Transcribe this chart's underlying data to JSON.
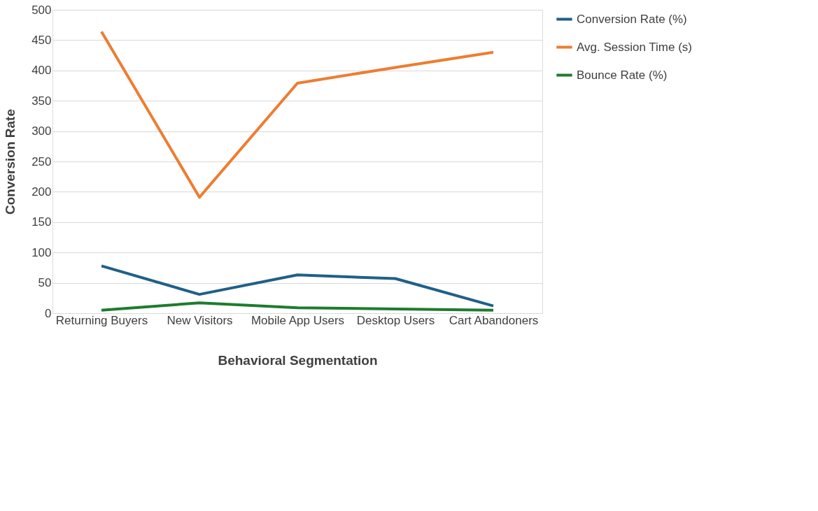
{
  "chart_data": {
    "type": "line",
    "xlabel": "Behavioral Segmentation",
    "ylabel": "Conversion Rate",
    "categories": [
      "Returning Buyers",
      "New Visitors",
      "Mobile App Users",
      "Desktop Users",
      "Cart Abandoners"
    ],
    "series": [
      {
        "name": "Conversion Rate (%)",
        "color": "#1f6088",
        "values": [
          78,
          31,
          63,
          57,
          12
        ]
      },
      {
        "name": "Avg. Session Time (s)",
        "color": "#ed7d31",
        "values": [
          464,
          191,
          379,
          405,
          430
        ]
      },
      {
        "name": "Bounce Rate (%)",
        "color": "#1e7b2e",
        "values": [
          5,
          17,
          9,
          7,
          5
        ]
      }
    ],
    "ylim": [
      0,
      500
    ],
    "yticks": [
      0,
      50,
      100,
      150,
      200,
      250,
      300,
      350,
      400,
      450,
      500
    ],
    "grid": "y",
    "legend": "right",
    "marker": "none",
    "line_style": "solid"
  }
}
